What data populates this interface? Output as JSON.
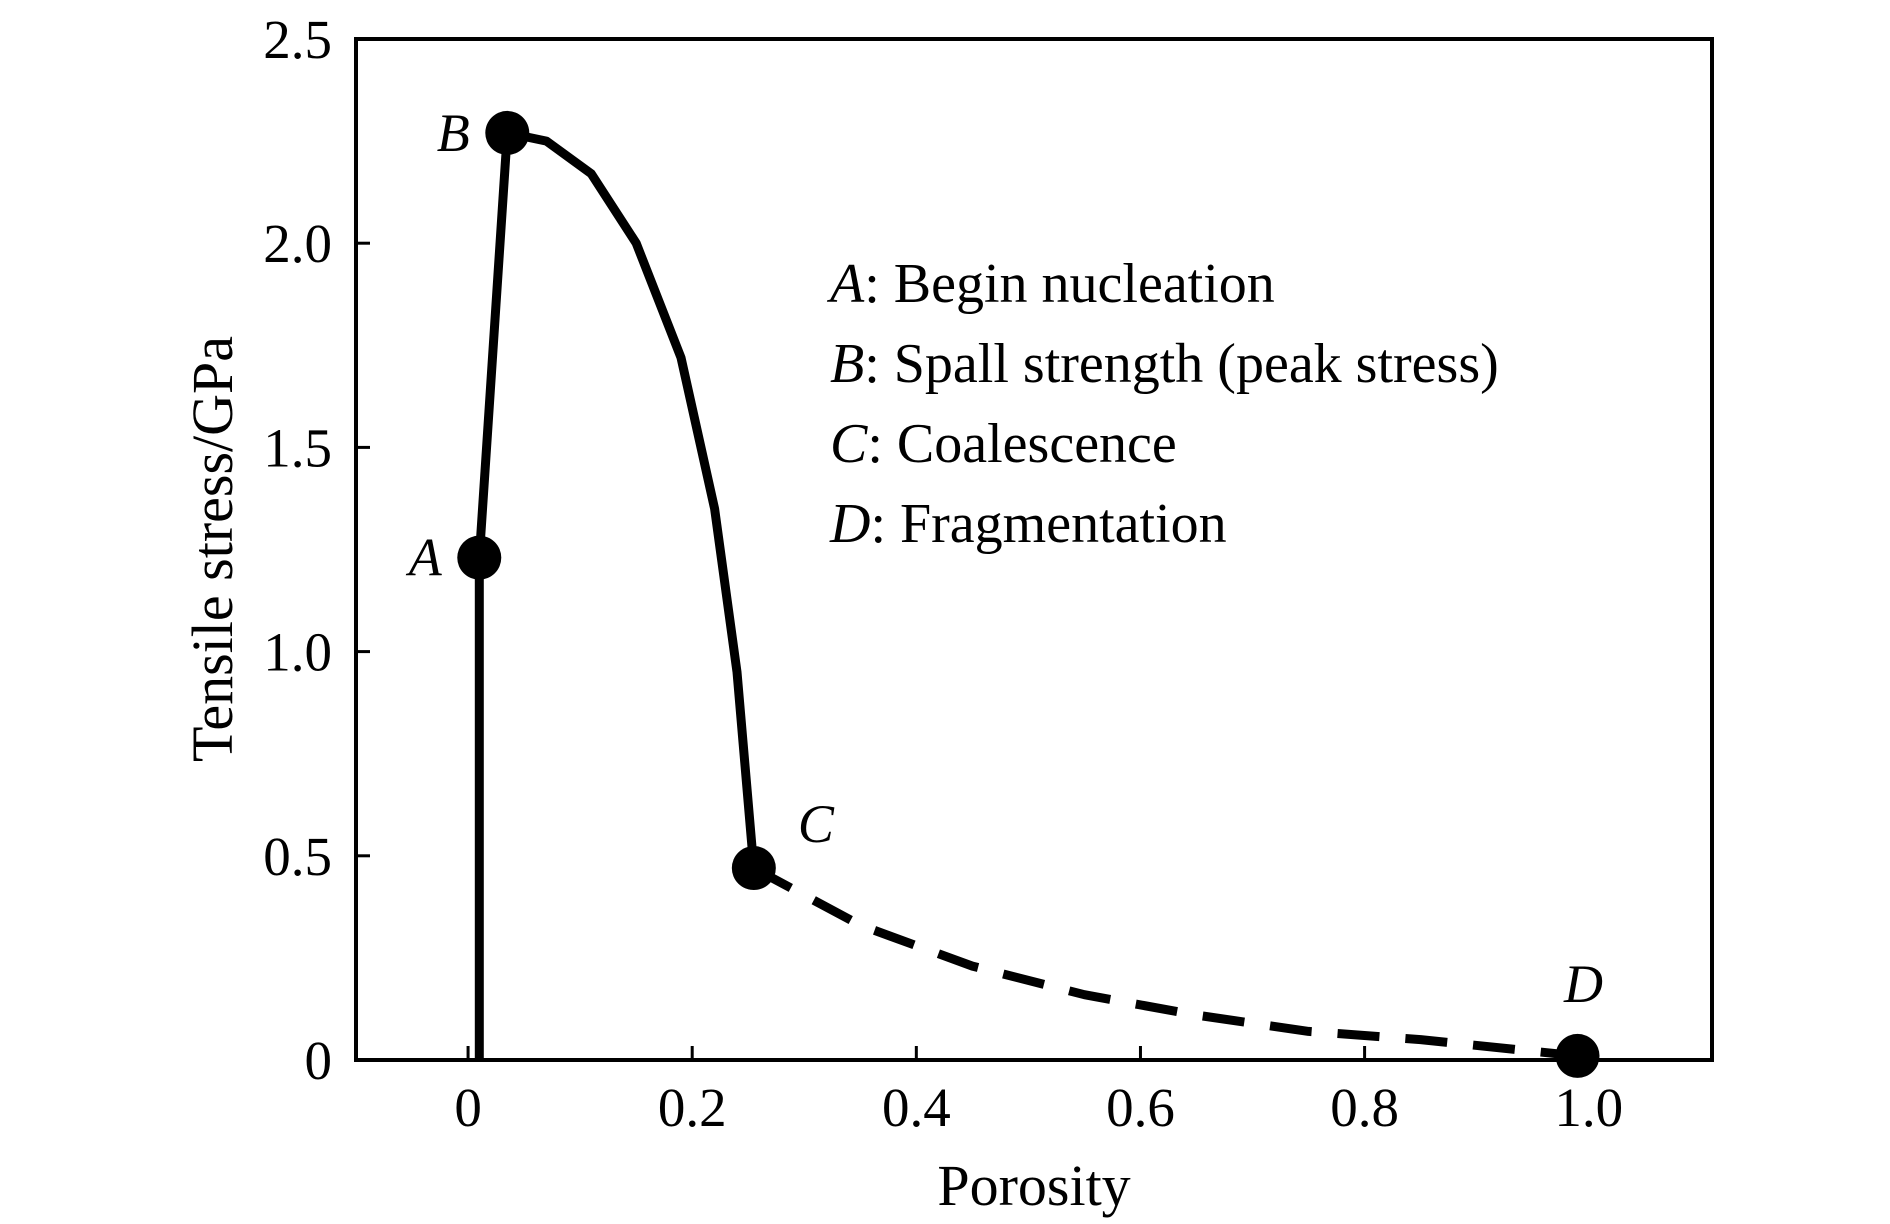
{
  "chart_data": {
    "type": "line",
    "title": "",
    "xlabel": "Porosity",
    "ylabel": "Tensile stress/GPa",
    "xlim": [
      -0.1,
      1.11
    ],
    "ylim": [
      0,
      2.5
    ],
    "x_ticks": [
      0,
      0.2,
      0.4,
      0.6,
      0.8,
      1.0
    ],
    "x_tick_labels": [
      "0",
      "0.2",
      "0.4",
      "0.6",
      "0.8",
      "1.0"
    ],
    "y_ticks": [
      0,
      0.5,
      1.0,
      1.5,
      2.0,
      2.5
    ],
    "y_tick_labels": [
      "0",
      "0.5",
      "1.0",
      "1.5",
      "2.0",
      "2.5"
    ],
    "grid": false,
    "series": [
      {
        "name": "solid",
        "style": "solid",
        "x": [
          0.01,
          0.01,
          0.035,
          0.07,
          0.11,
          0.15,
          0.19,
          0.22,
          0.24,
          0.255
        ],
        "y": [
          0,
          1.23,
          2.27,
          2.25,
          2.17,
          2.0,
          1.72,
          1.35,
          0.95,
          0.47
        ]
      },
      {
        "name": "dashed",
        "style": "dashed",
        "x": [
          0.255,
          0.35,
          0.45,
          0.55,
          0.65,
          0.75,
          0.85,
          0.99
        ],
        "y": [
          0.47,
          0.33,
          0.23,
          0.16,
          0.11,
          0.07,
          0.05,
          0.01
        ]
      }
    ],
    "points": [
      {
        "label": "A",
        "x": 0.01,
        "y": 1.23,
        "label_pos": "left"
      },
      {
        "label": "B",
        "x": 0.035,
        "y": 2.27,
        "label_pos": "left"
      },
      {
        "label": "C",
        "x": 0.255,
        "y": 0.47,
        "label_pos": "upper-right"
      },
      {
        "label": "D",
        "x": 0.99,
        "y": 0.01,
        "label_pos": "above"
      }
    ],
    "legend_position": "upper-right",
    "legend": [
      {
        "key": "A",
        "text": ": Begin nucleation"
      },
      {
        "key": "B",
        "text": ": Spall strength (peak stress)"
      },
      {
        "key": "C",
        "text": ": Coalescence"
      },
      {
        "key": "D",
        "text": ": Fragmentation"
      }
    ]
  }
}
